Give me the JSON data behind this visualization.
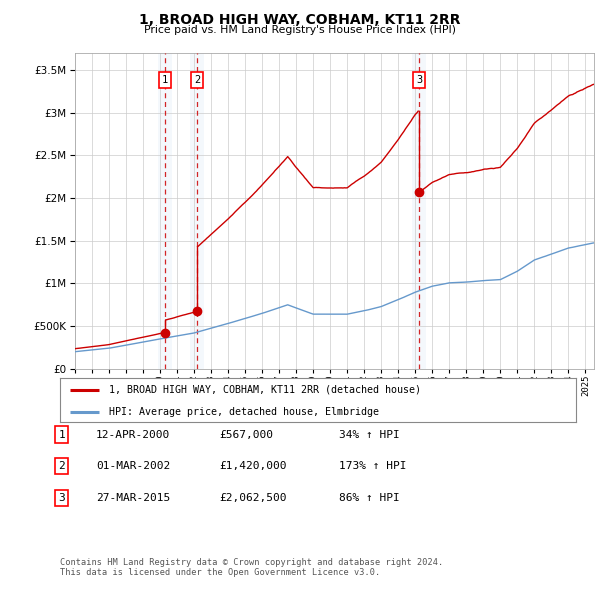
{
  "title": "1, BROAD HIGH WAY, COBHAM, KT11 2RR",
  "subtitle": "Price paid vs. HM Land Registry's House Price Index (HPI)",
  "footer": "Contains HM Land Registry data © Crown copyright and database right 2024.\nThis data is licensed under the Open Government Licence v3.0.",
  "legend_line1": "1, BROAD HIGH WAY, COBHAM, KT11 2RR (detached house)",
  "legend_line2": "HPI: Average price, detached house, Elmbridge",
  "transactions": [
    {
      "num": 1,
      "date": "12-APR-2000",
      "price": "£567,000",
      "pct": "34% ↑ HPI",
      "year": 2000.28
    },
    {
      "num": 2,
      "date": "01-MAR-2002",
      "price": "£1,420,000",
      "pct": "173% ↑ HPI",
      "year": 2002.17
    },
    {
      "num": 3,
      "date": "27-MAR-2015",
      "price": "£2,062,500",
      "pct": "86% ↑ HPI",
      "year": 2015.23
    }
  ],
  "hpi_color": "#6699cc",
  "price_color": "#cc0000",
  "vline_color": "#cc0000",
  "background_color": "#ffffff",
  "grid_color": "#cccccc",
  "xlim": [
    1995,
    2025.5
  ],
  "ylim": [
    0,
    3700000
  ],
  "yticks": [
    0,
    500000,
    1000000,
    1500000,
    2000000,
    2500000,
    3000000,
    3500000
  ]
}
